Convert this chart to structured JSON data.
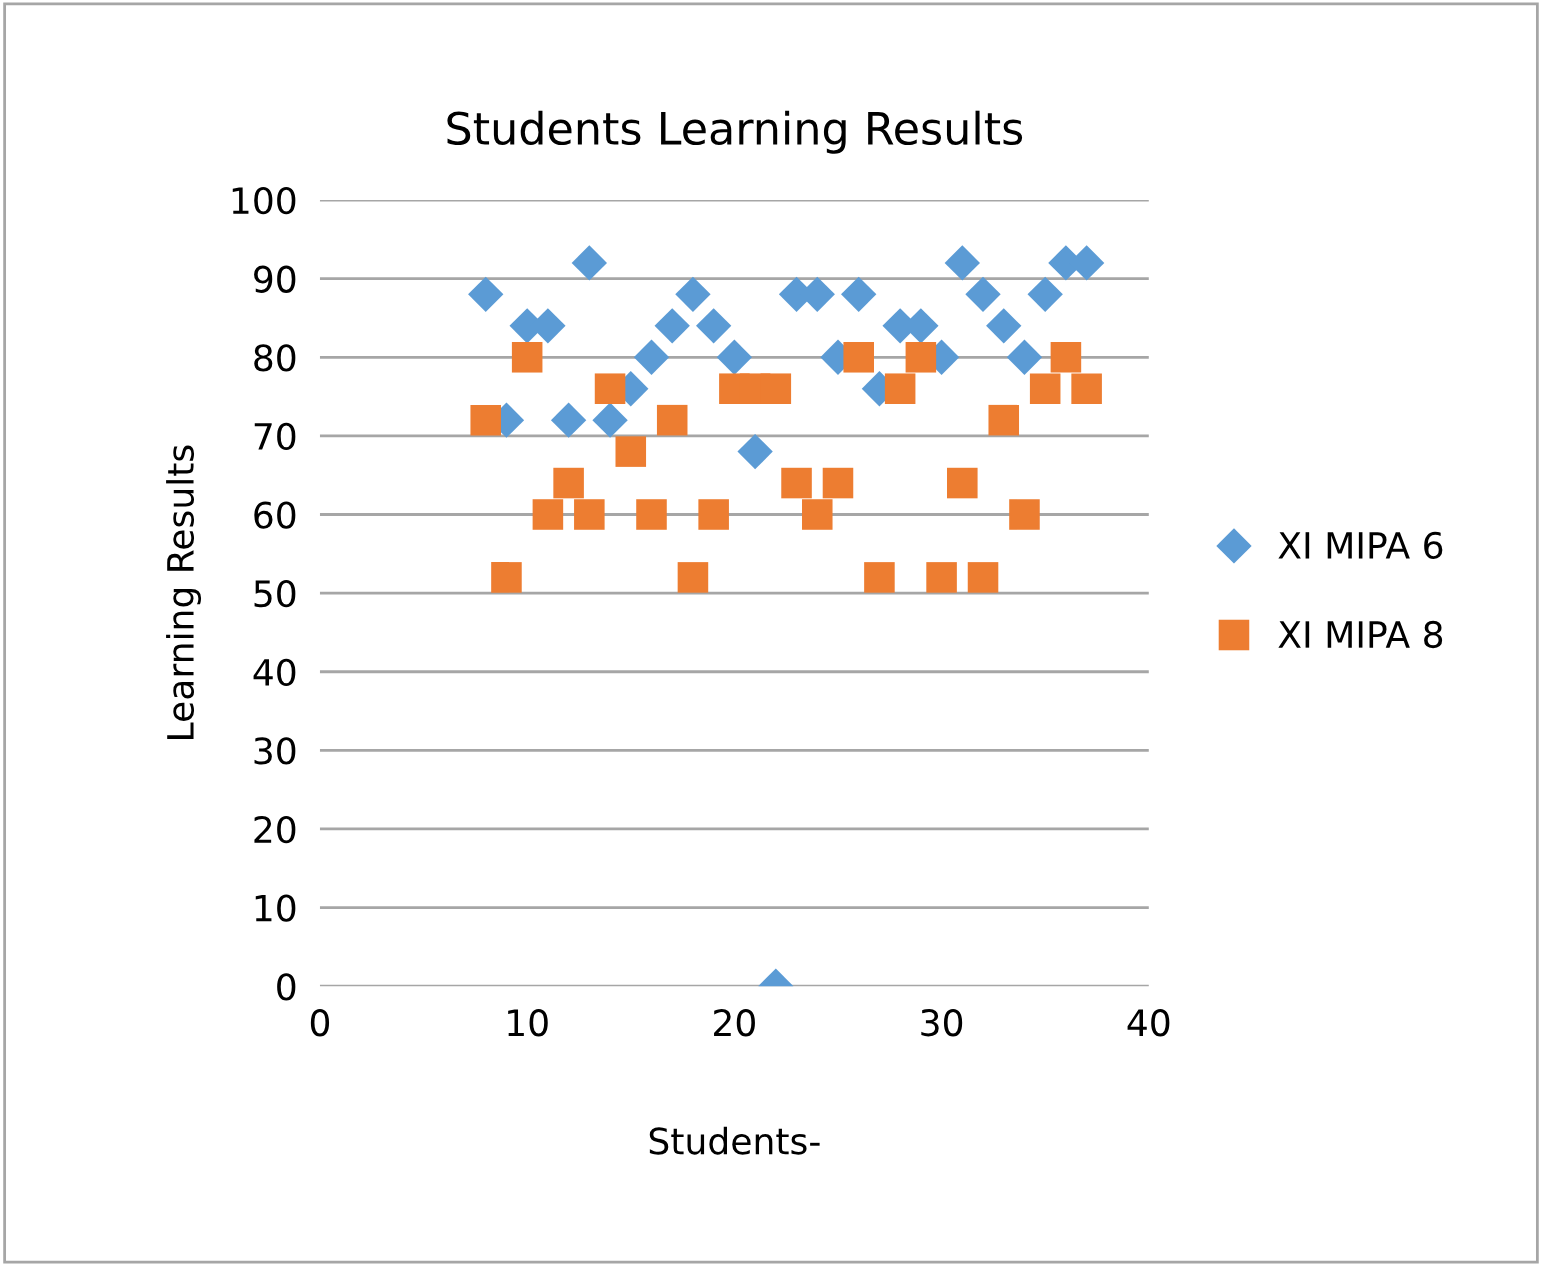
{
  "chart_data": {
    "type": "scatter",
    "title": "Students Learning Results",
    "xlabel": "Students-",
    "ylabel": "Learning Results",
    "xlim": [
      0,
      40
    ],
    "xticks": [
      0,
      10,
      20,
      30,
      40
    ],
    "ylim": [
      0,
      100
    ],
    "yticks": [
      0,
      10,
      20,
      30,
      40,
      50,
      60,
      70,
      80,
      90,
      100
    ],
    "grid": "y",
    "legend": "right",
    "x": [
      8,
      9,
      10,
      11,
      12,
      13,
      14,
      15,
      16,
      17,
      18,
      19,
      20,
      21,
      22,
      23,
      24,
      25,
      26,
      27,
      28,
      29,
      30,
      31,
      32,
      33,
      34,
      35,
      36,
      37
    ],
    "series": [
      {
        "name": "XI MIPA 6",
        "color": "#5b9bd5",
        "marker": "diamond",
        "values": [
          88,
          72,
          84,
          84,
          72,
          92,
          72,
          76,
          80,
          84,
          88,
          84,
          80,
          68,
          0,
          88,
          88,
          80,
          88,
          76,
          84,
          84,
          80,
          92,
          88,
          84,
          80,
          88,
          92,
          92
        ]
      },
      {
        "name": "XI MIPA 8",
        "color": "#ed7d31",
        "marker": "square",
        "values": [
          72,
          52,
          80,
          60,
          64,
          60,
          76,
          68,
          60,
          72,
          52,
          60,
          76,
          76,
          76,
          64,
          60,
          64,
          80,
          52,
          76,
          80,
          52,
          64,
          52,
          72,
          60,
          76,
          80,
          76
        ]
      }
    ]
  }
}
